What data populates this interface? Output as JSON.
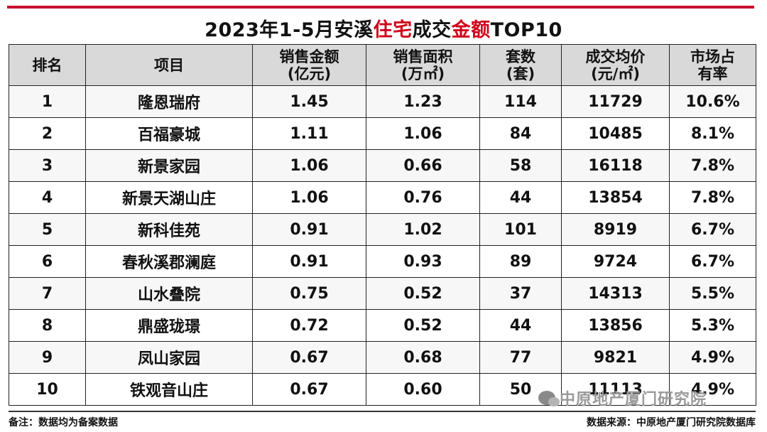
{
  "title": {
    "prefix": "2023年1-5月安溪",
    "highlight1": "住宅",
    "middle": "成交",
    "highlight2": "金额",
    "suffix": "TOP10"
  },
  "colors": {
    "accent": "#c8102e",
    "highlight": "#d0021b",
    "header_bg": "#d9d9d9"
  },
  "table": {
    "headers": [
      {
        "line1": "排名",
        "line2": ""
      },
      {
        "line1": "项目",
        "line2": ""
      },
      {
        "line1": "销售金额",
        "line2": "(亿元)"
      },
      {
        "line1": "销售面积",
        "line2": "(万㎡)"
      },
      {
        "line1": "套数",
        "line2": "(套)"
      },
      {
        "line1": "成交均价",
        "line2": "(元/㎡)"
      },
      {
        "line1": "市场占",
        "line2": "有率"
      }
    ],
    "rows": [
      [
        "1",
        "隆恩瑞府",
        "1.45",
        "1.23",
        "114",
        "11729",
        "10.6%"
      ],
      [
        "2",
        "百福豪城",
        "1.11",
        "1.06",
        "84",
        "10485",
        "8.1%"
      ],
      [
        "3",
        "新景家园",
        "1.06",
        "0.66",
        "58",
        "16118",
        "7.8%"
      ],
      [
        "4",
        "新景天湖山庄",
        "1.06",
        "0.76",
        "44",
        "13854",
        "7.8%"
      ],
      [
        "5",
        "新科佳苑",
        "0.91",
        "1.02",
        "101",
        "8919",
        "6.7%"
      ],
      [
        "6",
        "春秋溪郡澜庭",
        "0.91",
        "0.93",
        "89",
        "9724",
        "6.7%"
      ],
      [
        "7",
        "山水叠院",
        "0.75",
        "0.52",
        "37",
        "14313",
        "5.5%"
      ],
      [
        "8",
        "鼎盛珑璟",
        "0.72",
        "0.52",
        "44",
        "13856",
        "5.3%"
      ],
      [
        "9",
        "凤山家园",
        "0.67",
        "0.68",
        "77",
        "9821",
        "4.9%"
      ],
      [
        "10",
        "铁观音山庄",
        "0.67",
        "0.60",
        "50",
        "11113",
        "4.9%"
      ]
    ]
  },
  "footer": {
    "note": "备注：数据均为备案数据",
    "source": "数据来源：中原地产厦门研究院数据库"
  },
  "watermark": {
    "text": "中原地产厦门研究院",
    "icon": "wechat-icon"
  }
}
